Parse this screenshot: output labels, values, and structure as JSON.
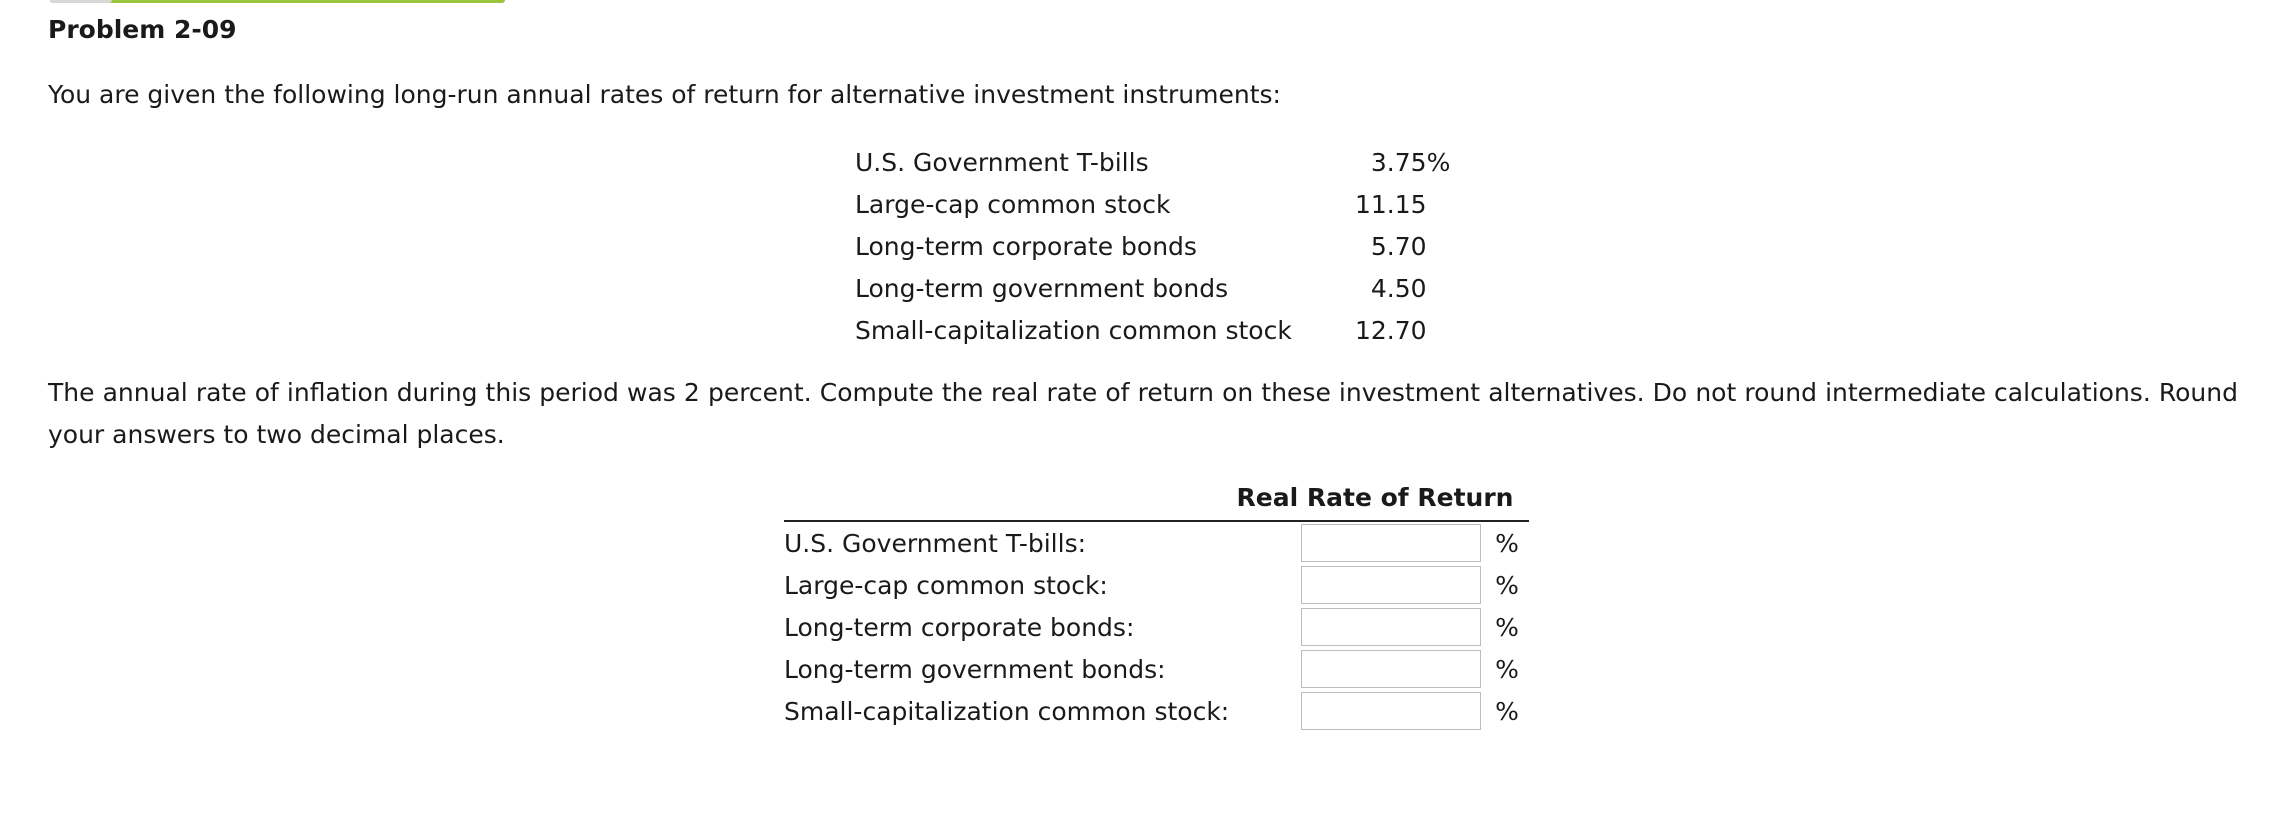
{
  "problem": {
    "title": "Problem 2-09",
    "intro": "You are given the following long-run annual rates of return for alternative investment instruments:",
    "rates": [
      {
        "instrument": "U.S. Government T-bills",
        "value": "3.75",
        "suffix": "%"
      },
      {
        "instrument": "Large-cap common stock",
        "value": "11.15",
        "suffix": ""
      },
      {
        "instrument": "Long-term corporate bonds",
        "value": "5.70",
        "suffix": ""
      },
      {
        "instrument": "Long-term government bonds",
        "value": "4.50",
        "suffix": ""
      },
      {
        "instrument": "Small-capitalization common stock",
        "value": "12.70",
        "suffix": ""
      }
    ],
    "question": "The annual rate of inflation during this period was 2 percent. Compute the real rate of return on these investment alternatives. Do not round intermediate calculations. Round your answers to two decimal places."
  },
  "answers": {
    "header": "Real Rate of Return",
    "rows": [
      {
        "label": "U.S. Government T-bills:",
        "value": "",
        "unit": "%"
      },
      {
        "label": "Large-cap common stock:",
        "value": "",
        "unit": "%"
      },
      {
        "label": "Long-term corporate bonds:",
        "value": "",
        "unit": "%"
      },
      {
        "label": "Long-term government bonds:",
        "value": "",
        "unit": "%"
      },
      {
        "label": "Small-capitalization common stock:",
        "value": "",
        "unit": "%"
      }
    ]
  }
}
